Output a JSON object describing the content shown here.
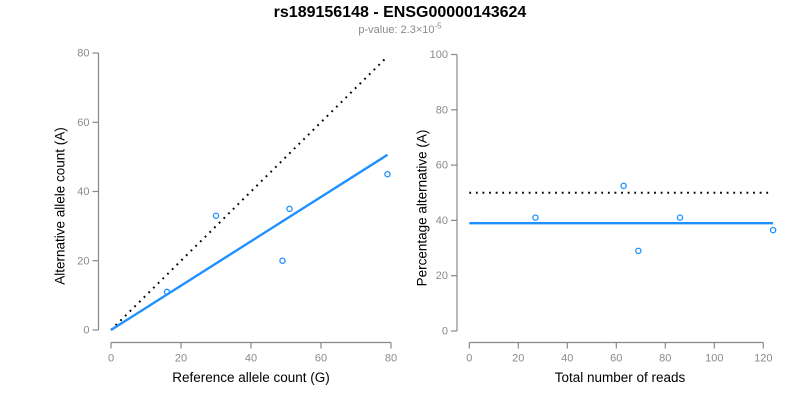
{
  "header": {
    "title": "rs189156148 - ENSG00000143624",
    "pvalue_label": "p-value: 2.3×10",
    "pvalue_exponent": "-5"
  },
  "colors": {
    "accent_blue": "#1E90FF",
    "dotted_black": "#000000",
    "axis": "#888888",
    "tick_label": "#8a8a8a",
    "axis_title": "#000000",
    "subtitle": "#8a8a8a",
    "background": "#ffffff"
  },
  "chart_data": [
    {
      "type": "scatter",
      "title": "",
      "xlabel": "Reference allele count (G)",
      "ylabel": "Alternative allele count (A)",
      "xlim": [
        0,
        80
      ],
      "ylim": [
        0,
        80
      ],
      "xticks": [
        0,
        20,
        40,
        60,
        80
      ],
      "yticks": [
        0,
        20,
        40,
        60,
        80
      ],
      "grid": false,
      "legend": "none",
      "points": [
        {
          "x": 16,
          "y": 11
        },
        {
          "x": 30,
          "y": 33
        },
        {
          "x": 49,
          "y": 20
        },
        {
          "x": 51,
          "y": 35
        },
        {
          "x": 79,
          "y": 45
        }
      ],
      "lines": [
        {
          "name": "identity-line",
          "style": "dotted",
          "color": "#000000",
          "x1": 0,
          "y1": 0,
          "x2": 79,
          "y2": 79
        },
        {
          "name": "fit-line",
          "style": "solid",
          "color": "#1E90FF",
          "x1": 0,
          "y1": 0,
          "x2": 79,
          "y2": 50.6
        }
      ]
    },
    {
      "type": "scatter",
      "title": "",
      "xlabel": "Total number of reads",
      "ylabel": "Percentage alternative (A)",
      "xlim": [
        0,
        124
      ],
      "ylim": [
        0,
        100
      ],
      "xticks": [
        0,
        20,
        40,
        60,
        80,
        100,
        120
      ],
      "yticks": [
        0,
        20,
        40,
        60,
        80,
        100
      ],
      "grid": false,
      "legend": "none",
      "points": [
        {
          "x": 27,
          "y": 41
        },
        {
          "x": 63,
          "y": 52.5
        },
        {
          "x": 69,
          "y": 29
        },
        {
          "x": 86,
          "y": 41
        },
        {
          "x": 124,
          "y": 36.5
        }
      ],
      "lines": [
        {
          "name": "expected-50pct-line",
          "style": "dotted",
          "color": "#000000",
          "x1": 0,
          "y1": 50,
          "x2": 122,
          "y2": 50
        },
        {
          "name": "mean-percentage-line",
          "style": "solid",
          "color": "#1E90FF",
          "x1": 0,
          "y1": 39,
          "x2": 124,
          "y2": 39
        }
      ]
    }
  ]
}
